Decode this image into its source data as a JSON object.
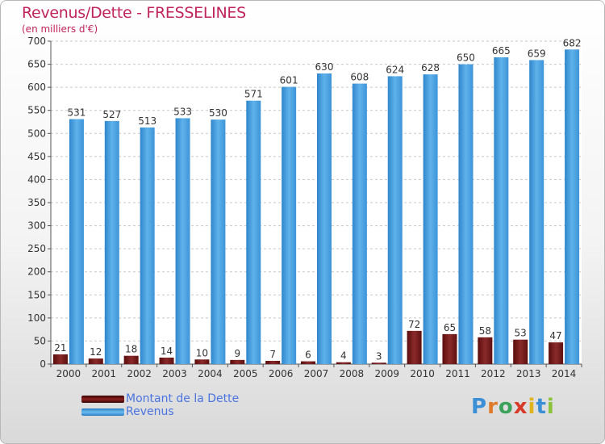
{
  "header": {
    "title": "Revenus/Dette - FRESSELINES",
    "subtitle": "(en milliers d'€)"
  },
  "legend": {
    "items": [
      {
        "label": "Montant de la Dette",
        "color": "#6e1313"
      },
      {
        "label": "Revenus",
        "color": "#5aaee6"
      }
    ]
  },
  "logo": {
    "letters": [
      "P",
      "r",
      "o",
      "x",
      "i",
      "t",
      "i"
    ],
    "colors": [
      "#3a8fd6",
      "#e07a2a",
      "#3aa25a",
      "#d83a2a",
      "#e0b41e",
      "#3a8fd6",
      "#8ac23a"
    ]
  },
  "chart_data": {
    "type": "bar",
    "categories": [
      "2000",
      "2001",
      "2002",
      "2003",
      "2004",
      "2005",
      "2006",
      "2007",
      "2008",
      "2009",
      "2010",
      "2011",
      "2012",
      "2013",
      "2014"
    ],
    "series": [
      {
        "name": "Montant de la Dette",
        "values": [
          21,
          12,
          18,
          14,
          10,
          9,
          7,
          6,
          4,
          3,
          72,
          65,
          58,
          53,
          47
        ],
        "color": "#6e1313"
      },
      {
        "name": "Revenus",
        "values": [
          531,
          527,
          513,
          533,
          530,
          571,
          601,
          630,
          608,
          624,
          628,
          650,
          665,
          659,
          682
        ],
        "color": "#5aaee6"
      }
    ],
    "ylim": [
      0,
      700
    ],
    "yticks": [
      0,
      50,
      100,
      150,
      200,
      250,
      300,
      350,
      400,
      450,
      500,
      550,
      600,
      650,
      700
    ],
    "grid": true,
    "legend_position": "bottom-left"
  }
}
